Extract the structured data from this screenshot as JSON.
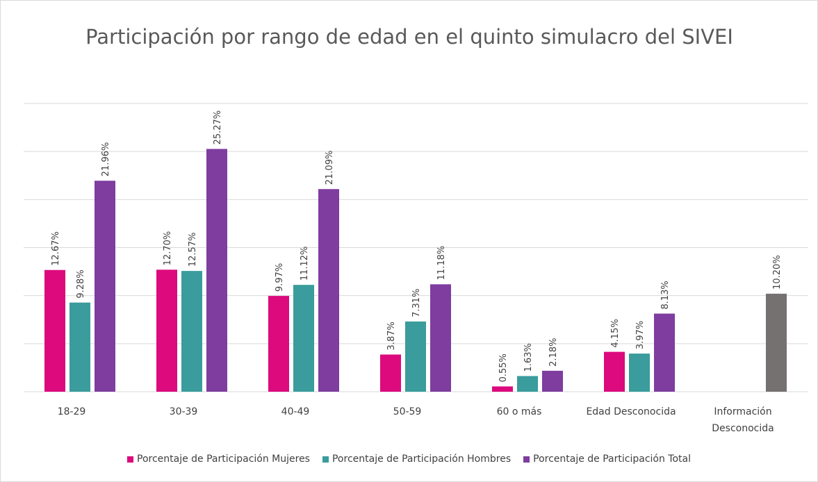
{
  "chart_data": {
    "type": "bar",
    "title": "Participación por rango de edad en el quinto simulacro del SIVEI",
    "categories": [
      "18-29",
      "30-39",
      "40-49",
      "50-59",
      "60 o más",
      "Edad Desconocida",
      "Información Desconocida"
    ],
    "series": [
      {
        "name": "Porcentaje de Participación Mujeres",
        "color": "#dc0a7d",
        "values": [
          12.67,
          12.7,
          9.97,
          3.87,
          0.55,
          4.15,
          null
        ],
        "value_labels": [
          "12.67%",
          "12.70%",
          "9.97%",
          "3.87%",
          "0.55%",
          "4.15%",
          null
        ]
      },
      {
        "name": "Porcentaje de Participación Hombres",
        "color": "#3a9c9c",
        "values": [
          9.28,
          12.57,
          11.12,
          7.31,
          1.63,
          3.97,
          null
        ],
        "value_labels": [
          "9.28%",
          "12.57%",
          "11.12%",
          "7.31%",
          "1.63%",
          "3.97%",
          null
        ]
      },
      {
        "name": "Porcentaje de Participación Total",
        "color": "#7e3d9f",
        "colors": [
          "#7e3d9f",
          "#7e3d9f",
          "#7e3d9f",
          "#7e3d9f",
          "#7e3d9f",
          "#7e3d9f",
          "#757171"
        ],
        "values": [
          21.96,
          25.27,
          21.09,
          11.18,
          2.18,
          8.13,
          10.2
        ],
        "value_labels": [
          "21.96%",
          "25.27%",
          "21.09%",
          "11.18%",
          "2.18%",
          "8.13%",
          "10.20%"
        ]
      }
    ],
    "ylim": [
      0,
      30
    ],
    "yticks": [
      0,
      5,
      10,
      15,
      20,
      25,
      30
    ],
    "grid": true,
    "legend": "bottom"
  }
}
